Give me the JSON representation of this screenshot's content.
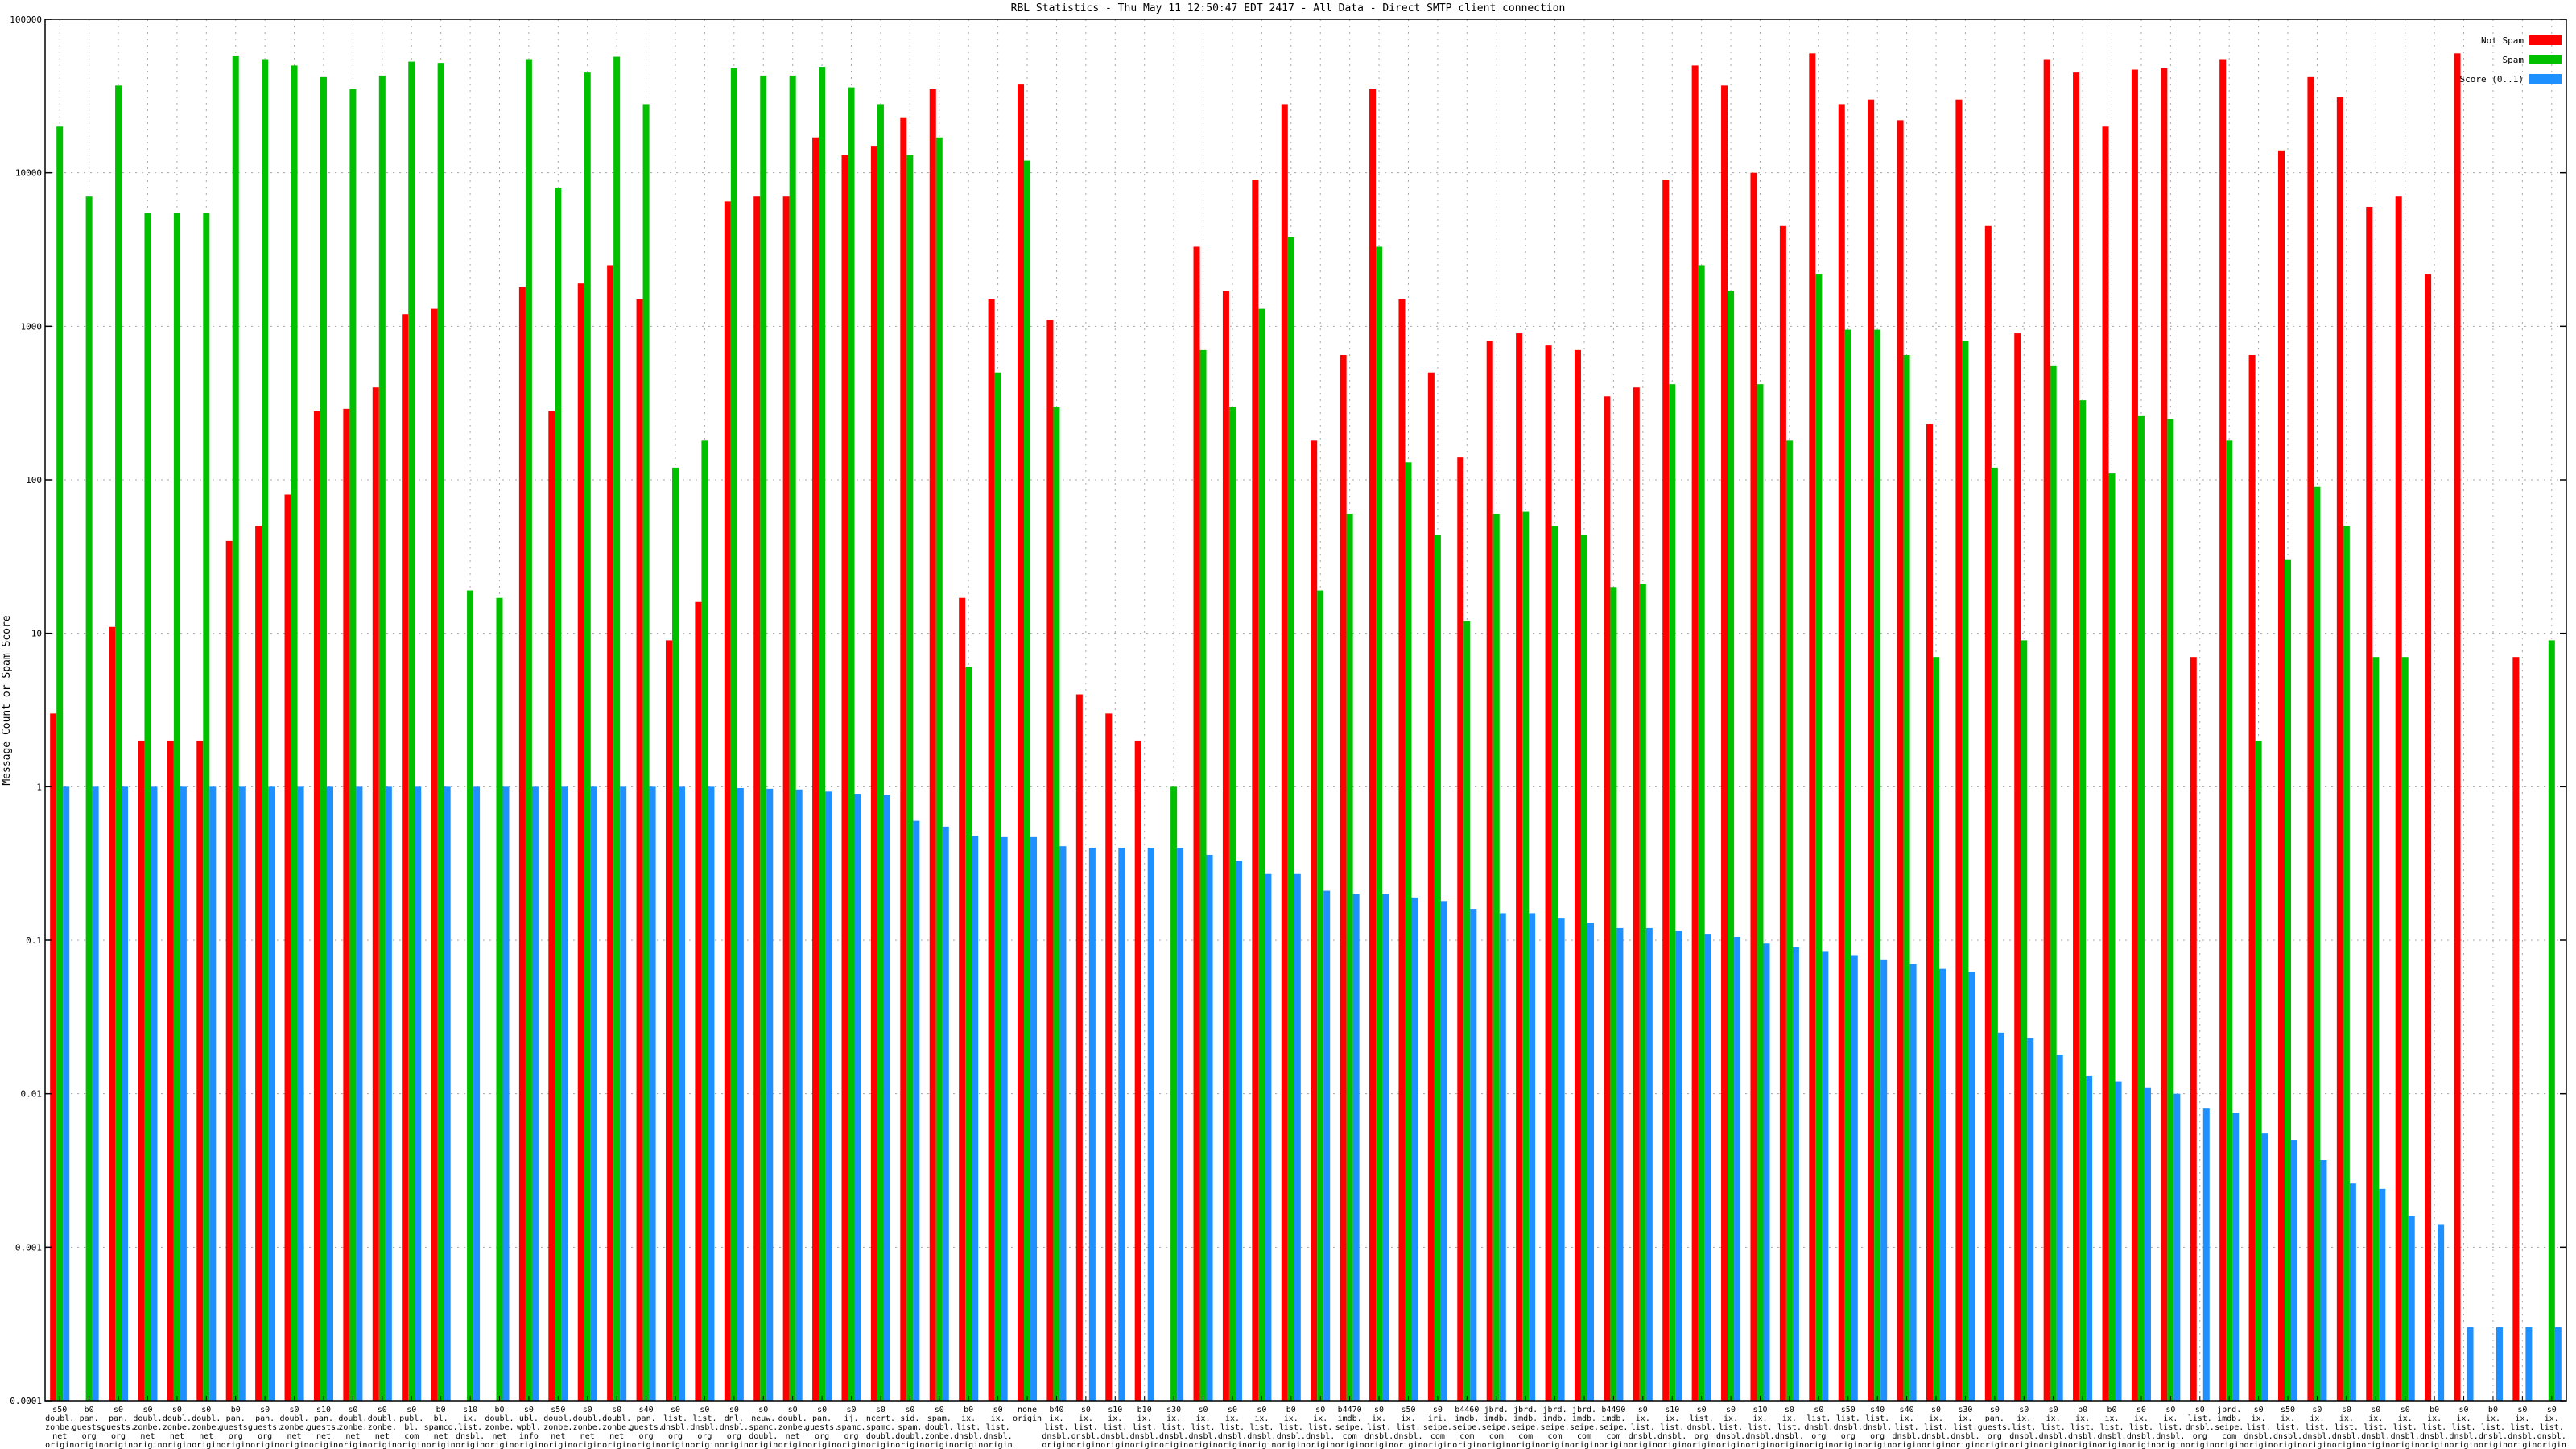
{
  "chart_data": {
    "type": "bar",
    "title": "RBL Statistics - Thu May 11 12:50:47 EDT 2417 - All Data - Direct SMTP client connection",
    "ylabel": "Message Count or Spam Score",
    "xlabel": "",
    "yscale": "log",
    "ylim": [
      0.0001,
      100000
    ],
    "yticks": [
      "0.0001",
      "0.001",
      "0.01",
      "0.1",
      "1",
      "10",
      "100",
      "1000",
      "10000",
      "100000"
    ],
    "grid": true,
    "legend_position": "top-right",
    "series_colors": [
      "#ff0000",
      "#00c000",
      "#1e90ff"
    ],
    "categories": [
      [
        "s50",
        "doubl.",
        "zonbe.",
        "net",
        "origin"
      ],
      [
        "b0",
        "pan.",
        "guests.",
        "org",
        "origin"
      ],
      [
        "s0",
        "pan.",
        "guests.",
        "org",
        "origin"
      ],
      [
        "s0",
        "doubl.",
        "zonbe.",
        "net",
        "origin"
      ],
      [
        "s0",
        "doubl.",
        "zonbe.",
        "net",
        "origin"
      ],
      [
        "s0",
        "doubl.",
        "zonbe.",
        "net",
        "origin"
      ],
      [
        "b0",
        "pan.",
        "guests.",
        "org",
        "origin"
      ],
      [
        "s0",
        "pan.",
        "guests.",
        "org",
        "origin"
      ],
      [
        "s0",
        "doubl.",
        "zonbe.",
        "net",
        "origin"
      ],
      [
        "s10",
        "pan.",
        "guests.",
        "net",
        "origin"
      ],
      [
        "s0",
        "doubl.",
        "zonbe.",
        "net",
        "origin"
      ],
      [
        "s0",
        "doubl.",
        "zonbe.",
        "net",
        "origin"
      ],
      [
        "s0",
        "publ.",
        "bl.",
        "com",
        "origin"
      ],
      [
        "b0",
        "bl.",
        "spamco.",
        "net",
        "origin"
      ],
      [
        "s10",
        "ix.",
        "list.",
        "dnsbl.",
        "origin"
      ],
      [
        "b0",
        "doubl.",
        "zonbe.",
        "net",
        "origin"
      ],
      [
        "s0",
        "ubl.",
        "wpbl.",
        "info",
        "origin"
      ],
      [
        "s50",
        "doubl.",
        "zonbe.",
        "net",
        "origin"
      ],
      [
        "s0",
        "doubl.",
        "zonbe.",
        "net",
        "origin"
      ],
      [
        "s0",
        "doubl.",
        "zonbe.",
        "net",
        "origin"
      ],
      [
        "s40",
        "pan.",
        "guests.",
        "org",
        "origin"
      ],
      [
        "s0",
        "list.",
        "dnsbl.",
        "org",
        "origin"
      ],
      [
        "s0",
        "list.",
        "dnsbl.",
        "org",
        "origin"
      ],
      [
        "s0",
        "dnl.",
        "dnsbl.",
        "org",
        "origin"
      ],
      [
        "s0",
        "neuw.",
        "spamc.",
        "doubl.",
        "origin"
      ],
      [
        "s0",
        "doubl.",
        "zonbe.",
        "net",
        "origin"
      ],
      [
        "s0",
        "pan.",
        "guests.",
        "org",
        "origin"
      ],
      [
        "s0",
        "ij.",
        "spamc.",
        "org",
        "origin"
      ],
      [
        "s0",
        "ncert.",
        "spamc.",
        "doubl.",
        "origin"
      ],
      [
        "s0",
        "sid.",
        "spam.",
        "doubl.",
        "origin"
      ],
      [
        "s0",
        "spam.",
        "doubl.",
        "zonbe.",
        "origin"
      ],
      [
        "b0",
        "ix.",
        "list.",
        "dnsbl.",
        "origin"
      ],
      [
        "s0",
        "ix.",
        "list.",
        "dnsbl.",
        "origin"
      ],
      [
        "none",
        "origin"
      ],
      [
        "b40",
        "ix.",
        "list.",
        "dnsbl.",
        "origin"
      ],
      [
        "s0",
        "ix.",
        "list.",
        "dnsbl.",
        "origin"
      ],
      [
        "s10",
        "ix.",
        "list.",
        "dnsbl.",
        "origin"
      ],
      [
        "b10",
        "ix.",
        "list.",
        "dnsbl.",
        "origin"
      ],
      [
        "s30",
        "ix.",
        "list.",
        "dnsbl.",
        "origin"
      ],
      [
        "s0",
        "ix.",
        "list.",
        "dnsbl.",
        "origin"
      ],
      [
        "s0",
        "ix.",
        "list.",
        "dnsbl.",
        "origin"
      ],
      [
        "s0",
        "ix.",
        "list.",
        "dnsbl.",
        "origin"
      ],
      [
        "b0",
        "ix.",
        "list.",
        "dnsbl.",
        "origin"
      ],
      [
        "s0",
        "ix.",
        "list.",
        "dnsbl.",
        "origin"
      ],
      [
        "b4470",
        "imdb.",
        "seipe.",
        "com",
        "origin"
      ],
      [
        "s0",
        "ix.",
        "list.",
        "dnsbl.",
        "origin"
      ],
      [
        "s50",
        "ix.",
        "list.",
        "dnsbl.",
        "origin"
      ],
      [
        "s0",
        "iri.",
        "seipe.",
        "com",
        "origin"
      ],
      [
        "b4460",
        "imdb.",
        "seipe.",
        "com",
        "origin"
      ],
      [
        "jbrd.",
        "imdb.",
        "seipe.",
        "com",
        "origin"
      ],
      [
        "jbrd.",
        "imdb.",
        "seipe.",
        "com",
        "origin"
      ],
      [
        "jbrd.",
        "imdb.",
        "seipe.",
        "com",
        "origin"
      ],
      [
        "jbrd.",
        "imdb.",
        "seipe.",
        "com",
        "origin"
      ],
      [
        "b4490",
        "imdb.",
        "seipe.",
        "com",
        "origin"
      ],
      [
        "s0",
        "ix.",
        "list.",
        "dnsbl.",
        "origin"
      ],
      [
        "s10",
        "ix.",
        "list.",
        "dnsbl.",
        "origin"
      ],
      [
        "s0",
        "list.",
        "dnsbl.",
        "org",
        "origin"
      ],
      [
        "s0",
        "ix.",
        "list.",
        "dnsbl.",
        "origin"
      ],
      [
        "s10",
        "ix.",
        "list.",
        "dnsbl.",
        "origin"
      ],
      [
        "s0",
        "ix.",
        "list.",
        "dnsbl.",
        "origin"
      ],
      [
        "s0",
        "list.",
        "dnsbl.",
        "org",
        "origin"
      ],
      [
        "s50",
        "list.",
        "dnsbl.",
        "org",
        "origin"
      ],
      [
        "s40",
        "list.",
        "dnsbl.",
        "org",
        "origin"
      ],
      [
        "s40",
        "ix.",
        "list.",
        "dnsbl.",
        "origin"
      ],
      [
        "s0",
        "ix.",
        "list.",
        "dnsbl.",
        "origin"
      ],
      [
        "s30",
        "ix.",
        "list.",
        "dnsbl.",
        "origin"
      ],
      [
        "s0",
        "pan.",
        "guests.",
        "org",
        "origin"
      ],
      [
        "s0",
        "ix.",
        "list.",
        "dnsbl.",
        "origin"
      ],
      [
        "s0",
        "ix.",
        "list.",
        "dnsbl.",
        "origin"
      ],
      [
        "b0",
        "ix.",
        "list.",
        "dnsbl.",
        "origin"
      ],
      [
        "b0",
        "ix.",
        "list.",
        "dnsbl.",
        "origin"
      ],
      [
        "s0",
        "ix.",
        "list.",
        "dnsbl.",
        "origin"
      ],
      [
        "s0",
        "ix.",
        "list.",
        "dnsbl.",
        "origin"
      ],
      [
        "s0",
        "list.",
        "dnsbl.",
        "org",
        "origin"
      ],
      [
        "jbrd.",
        "imdb.",
        "seipe.",
        "com",
        "origin"
      ],
      [
        "s0",
        "ix.",
        "list.",
        "dnsbl.",
        "origin"
      ],
      [
        "s50",
        "ix.",
        "list.",
        "dnsbl.",
        "origin"
      ],
      [
        "s0",
        "ix.",
        "list.",
        "dnsbl.",
        "origin"
      ],
      [
        "s0",
        "ix.",
        "list.",
        "dnsbl.",
        "origin"
      ],
      [
        "s0",
        "ix.",
        "list.",
        "dnsbl.",
        "origin"
      ],
      [
        "s0",
        "ix.",
        "list.",
        "dnsbl.",
        "origin"
      ],
      [
        "b0",
        "ix.",
        "list.",
        "dnsbl.",
        "origin"
      ],
      [
        "s0",
        "ix.",
        "list.",
        "dnsbl.",
        "origin"
      ],
      [
        "b0",
        "ix.",
        "list.",
        "dnsbl.",
        "origin"
      ],
      [
        "s0",
        "ix.",
        "list.",
        "dnsbl.",
        "origin"
      ],
      [
        "s0",
        "ix.",
        "list.",
        "dnsbl.",
        "origin"
      ]
    ],
    "series": [
      {
        "name": "Not Spam",
        "values": [
          3,
          null,
          11,
          2,
          2,
          2,
          40,
          50,
          80,
          280,
          290,
          400,
          1200,
          1300,
          null,
          null,
          1800,
          280,
          1900,
          2500,
          1500,
          9,
          16,
          6500,
          7000,
          7000,
          17000,
          13000,
          15000,
          23000,
          35000,
          17,
          1500,
          38000,
          1100,
          4,
          3,
          2,
          null,
          3300,
          1700,
          9000,
          28000,
          180,
          650,
          35000,
          1500,
          500,
          140,
          800,
          900,
          750,
          700,
          350,
          400,
          9000,
          50000,
          37000,
          10000,
          4500,
          60000,
          28000,
          30000,
          22000,
          230,
          30000,
          4500,
          900,
          55000,
          45000,
          20000,
          47000,
          48000,
          7,
          55000,
          650,
          14000,
          42000,
          31000,
          6000,
          7000,
          2200,
          60000,
          null,
          7,
          null
        ]
      },
      {
        "name": "Spam",
        "values": [
          20000,
          7000,
          37000,
          5500,
          5500,
          5500,
          58000,
          55000,
          50000,
          42000,
          35000,
          43000,
          53000,
          52000,
          19,
          17,
          55000,
          8000,
          45000,
          57000,
          28000,
          120,
          180,
          48000,
          43000,
          43000,
          49000,
          36000,
          28000,
          13000,
          17000,
          6,
          500,
          12000,
          300,
          null,
          null,
          null,
          1,
          700,
          300,
          1300,
          3800,
          19,
          60,
          3300,
          130,
          44,
          12,
          60,
          62,
          50,
          44,
          20,
          21,
          420,
          2500,
          1700,
          420,
          180,
          2200,
          950,
          950,
          650,
          7,
          800,
          120,
          9,
          550,
          330,
          110,
          260,
          250,
          null,
          180,
          2,
          30,
          90,
          50,
          7,
          7,
          null,
          null,
          null,
          null,
          9
        ]
      },
      {
        "name": "Score (0..1)",
        "values": [
          1,
          1,
          1,
          1,
          1,
          1,
          1,
          1,
          1,
          1,
          1,
          1,
          1,
          1,
          1,
          1,
          1,
          1,
          1,
          1,
          1,
          1,
          1,
          0.98,
          0.97,
          0.96,
          0.93,
          0.9,
          0.88,
          0.6,
          0.55,
          0.48,
          0.47,
          0.47,
          0.41,
          0.4,
          0.4,
          0.4,
          0.4,
          0.36,
          0.33,
          0.27,
          0.27,
          0.21,
          0.2,
          0.2,
          0.19,
          0.18,
          0.16,
          0.15,
          0.15,
          0.14,
          0.13,
          0.12,
          0.12,
          0.115,
          0.11,
          0.105,
          0.095,
          0.09,
          0.085,
          0.08,
          0.075,
          0.07,
          0.065,
          0.062,
          0.025,
          0.023,
          0.018,
          0.013,
          0.012,
          0.011,
          0.01,
          0.008,
          0.0075,
          0.0055,
          0.005,
          0.0037,
          0.0026,
          0.0024,
          0.0016,
          0.0014,
          0.0003,
          0.0003,
          0.0003,
          0.0003
        ]
      }
    ]
  }
}
